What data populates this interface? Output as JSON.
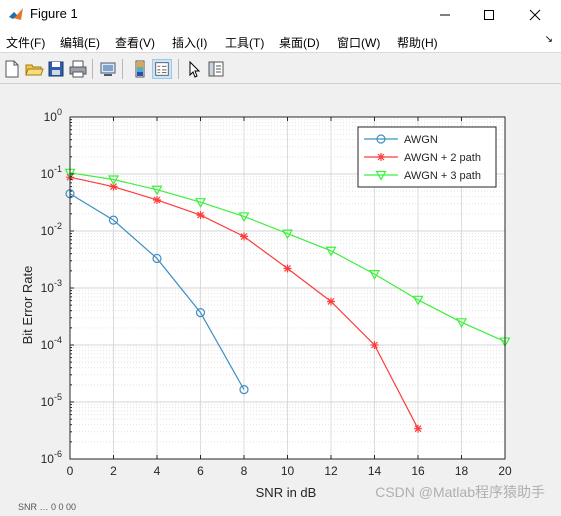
{
  "window": {
    "title": "Figure 1"
  },
  "menu": {
    "items": [
      "文件(F)",
      "编辑(E)",
      "查看(V)",
      "插入(I)",
      "工具(T)",
      "桌面(D)",
      "窗口(W)",
      "帮助(H)"
    ],
    "overflow": "↘"
  },
  "toolbar": {
    "buttons": [
      "new-figure",
      "open-file",
      "save",
      "print",
      "print-preview",
      "insert-colorbar",
      "insert-legend",
      "edit-plot",
      "property-inspector"
    ],
    "active": "insert-legend"
  },
  "chart_data": {
    "type": "line",
    "title": "",
    "xlabel": "SNR in dB",
    "ylabel": "Bit Error Rate",
    "xlim": [
      0,
      20
    ],
    "ylim": [
      1e-06,
      1
    ],
    "yscale": "log",
    "xticks": [
      "0",
      "2",
      "4",
      "6",
      "8",
      "10",
      "12",
      "14",
      "16",
      "18",
      "20"
    ],
    "yticks": [
      {
        "base": "10",
        "exp": "0"
      },
      {
        "base": "10",
        "exp": "-1"
      },
      {
        "base": "10",
        "exp": "-2"
      },
      {
        "base": "10",
        "exp": "-3"
      },
      {
        "base": "10",
        "exp": "-4"
      },
      {
        "base": "10",
        "exp": "-5"
      },
      {
        "base": "10",
        "exp": "-6"
      }
    ],
    "grid": true,
    "legend_position": "top-right",
    "series": [
      {
        "name": "AWGN",
        "color": "#3e8ec4",
        "marker": "circle",
        "x": [
          0,
          2,
          4,
          6,
          8
        ],
        "y": [
          0.045,
          0.0155,
          0.0033,
          0.00037,
          1.65e-05
        ]
      },
      {
        "name": "AWGN + 2 path",
        "color": "#ff3b3b",
        "marker": "star",
        "x": [
          0,
          2,
          4,
          6,
          8,
          10,
          12,
          14,
          16
        ],
        "y": [
          0.088,
          0.06,
          0.035,
          0.019,
          0.008,
          0.0022,
          0.00058,
          0.0001,
          3.4e-06
        ]
      },
      {
        "name": "AWGN + 3 path",
        "color": "#3cf03c",
        "marker": "triangle-down",
        "x": [
          0,
          2,
          4,
          6,
          8,
          10,
          12,
          14,
          16,
          18,
          20
        ],
        "y": [
          0.105,
          0.08,
          0.053,
          0.032,
          0.018,
          0.009,
          0.0045,
          0.00175,
          0.00062,
          0.00025,
          0.000115
        ]
      }
    ]
  },
  "watermark": "CSDN @Matlab程序猿助手",
  "status_text": "SNR … 0 0 00"
}
